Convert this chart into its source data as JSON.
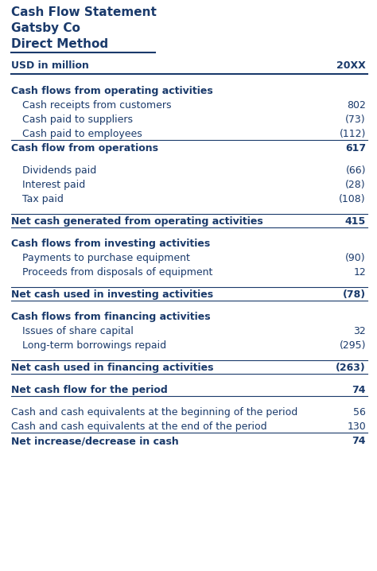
{
  "title1": "Cash Flow Statement",
  "title2": "Gatsby Co",
  "title3": "Direct Method",
  "header_left": "USD in million",
  "header_right": "20XX",
  "bg_color": "#ffffff",
  "text_color": "#1a3a6b",
  "rows": [
    {
      "label": "Cash flows from operating activities",
      "value": "",
      "bold": true,
      "indent": false,
      "line_above": false,
      "line_below": false,
      "gap_above": true
    },
    {
      "label": "Cash receipts from customers",
      "value": "802",
      "bold": false,
      "indent": true,
      "line_above": false,
      "line_below": false,
      "gap_above": false
    },
    {
      "label": "Cash paid to suppliers",
      "value": "(73)",
      "bold": false,
      "indent": true,
      "line_above": false,
      "line_below": false,
      "gap_above": false
    },
    {
      "label": "Cash paid to employees",
      "value": "(112)",
      "bold": false,
      "indent": true,
      "line_above": false,
      "line_below": true,
      "gap_above": false
    },
    {
      "label": "Cash flow from operations",
      "value": "617",
      "bold": true,
      "indent": false,
      "line_above": false,
      "line_below": false,
      "gap_above": false
    },
    {
      "label": "Dividends paid",
      "value": "(66)",
      "bold": false,
      "indent": true,
      "line_above": false,
      "line_below": false,
      "gap_above": true
    },
    {
      "label": "Interest paid",
      "value": "(28)",
      "bold": false,
      "indent": true,
      "line_above": false,
      "line_below": false,
      "gap_above": false
    },
    {
      "label": "Tax paid",
      "value": "(108)",
      "bold": false,
      "indent": true,
      "line_above": false,
      "line_below": false,
      "gap_above": false
    },
    {
      "label": "Net cash generated from operating activities",
      "value": "415",
      "bold": true,
      "indent": false,
      "line_above": true,
      "line_below": true,
      "gap_above": true
    },
    {
      "label": "Cash flows from investing activities",
      "value": "",
      "bold": true,
      "indent": false,
      "line_above": false,
      "line_below": false,
      "gap_above": true
    },
    {
      "label": "Payments to purchase equipment",
      "value": "(90)",
      "bold": false,
      "indent": true,
      "line_above": false,
      "line_below": false,
      "gap_above": false
    },
    {
      "label": "Proceeds from disposals of equipment",
      "value": "12",
      "bold": false,
      "indent": true,
      "line_above": false,
      "line_below": false,
      "gap_above": false
    },
    {
      "label": "Net cash used in investing activities",
      "value": "(78)",
      "bold": true,
      "indent": false,
      "line_above": true,
      "line_below": true,
      "gap_above": true
    },
    {
      "label": "Cash flows from financing activities",
      "value": "",
      "bold": true,
      "indent": false,
      "line_above": false,
      "line_below": false,
      "gap_above": true
    },
    {
      "label": "Issues of share capital",
      "value": "32",
      "bold": false,
      "indent": true,
      "line_above": false,
      "line_below": false,
      "gap_above": false
    },
    {
      "label": "Long-term borrowings repaid",
      "value": "(295)",
      "bold": false,
      "indent": true,
      "line_above": false,
      "line_below": false,
      "gap_above": false
    },
    {
      "label": "Net cash used in financing activities",
      "value": "(263)",
      "bold": true,
      "indent": false,
      "line_above": true,
      "line_below": true,
      "gap_above": true
    },
    {
      "label": "Net cash flow for the period",
      "value": "74",
      "bold": true,
      "indent": false,
      "line_above": false,
      "line_below": true,
      "gap_above": true
    },
    {
      "label": "Cash and cash equivalents at the beginning of the period",
      "value": "56",
      "bold": false,
      "indent": false,
      "line_above": false,
      "line_below": false,
      "gap_above": true
    },
    {
      "label": "Cash and cash equivalents at the end of the period",
      "value": "130",
      "bold": false,
      "indent": false,
      "line_above": false,
      "line_below": true,
      "gap_above": false
    },
    {
      "label": "Net increase/decrease in cash",
      "value": "74",
      "bold": true,
      "indent": false,
      "line_above": false,
      "line_below": false,
      "gap_above": false
    }
  ]
}
